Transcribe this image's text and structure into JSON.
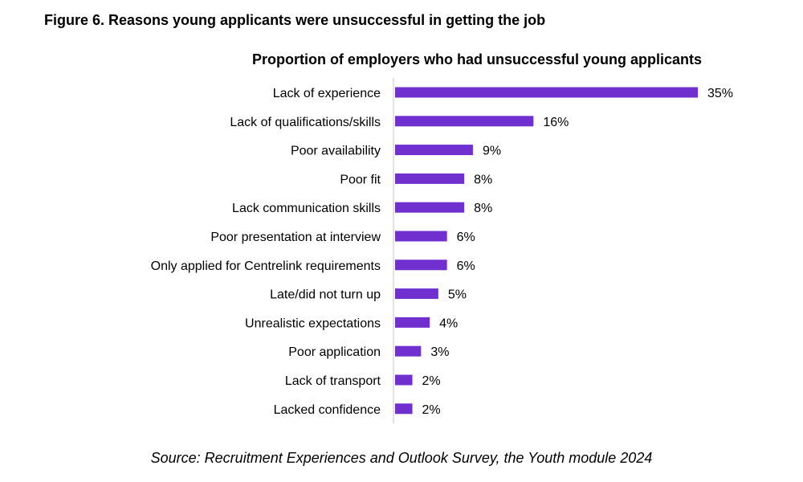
{
  "figure": {
    "title": "Figure 6. Reasons young applicants were unsuccessful in getting the job",
    "source": "Source: Recruitment Experiences and Outlook Survey, the Youth module 2024"
  },
  "chart_data": {
    "type": "bar",
    "orientation": "horizontal",
    "title": "Proportion of employers who had unsuccessful young applicants",
    "xlabel": "",
    "ylabel": "",
    "categories": [
      "Lack of experience",
      "Lack of qualifications/skills",
      "Poor availability",
      "Poor fit",
      "Lack communication skills",
      "Poor presentation at interview",
      "Only applied for Centrelink requirements",
      "Late/did not turn up",
      "Unrealistic expectations",
      "Poor application",
      "Lack of transport",
      "Lacked confidence"
    ],
    "values": [
      35,
      16,
      9,
      8,
      8,
      6,
      6,
      5,
      4,
      3,
      2,
      2
    ],
    "value_labels": [
      "35%",
      "16%",
      "9%",
      "8%",
      "8%",
      "6%",
      "6%",
      "5%",
      "4%",
      "3%",
      "2%",
      "2%"
    ],
    "unit": "%",
    "xlim": [
      0,
      35
    ],
    "grid": false,
    "legend": "none",
    "bar_color": "#7030d0",
    "axis_color": "#d9d9d9"
  }
}
